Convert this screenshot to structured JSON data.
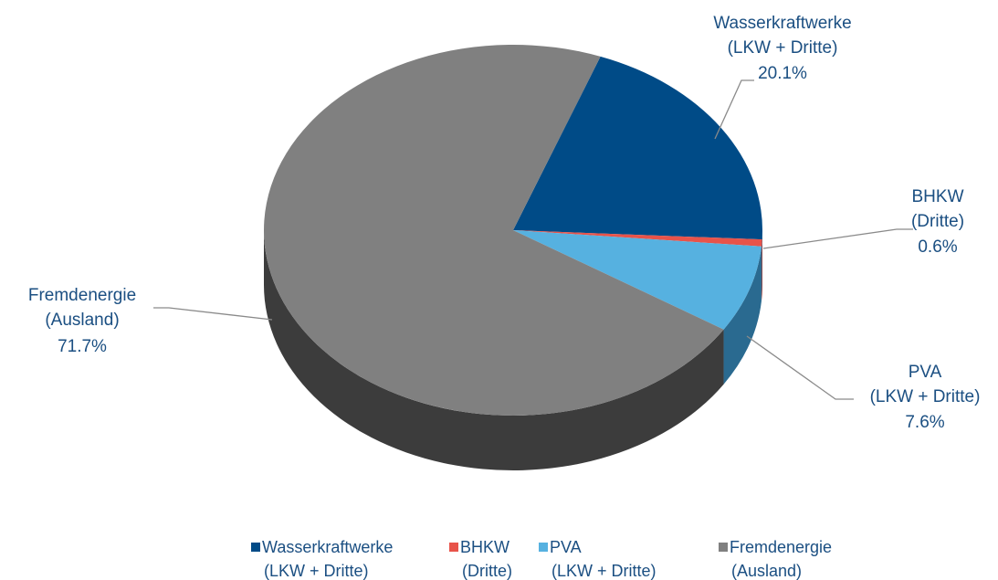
{
  "chart_data": {
    "type": "pie",
    "categories": [
      [
        "Wasserkraftwerke",
        "(LKW + Dritte)"
      ],
      [
        "BHKW",
        "(Dritte)"
      ],
      [
        "PVA",
        "(LKW + Dritte)"
      ],
      [
        "Fremdenergie",
        "(Ausland)"
      ]
    ],
    "values": [
      20.1,
      0.6,
      7.6,
      71.7
    ],
    "value_labels": [
      "20.1%",
      "0.6%",
      "7.6%",
      "71.7%"
    ],
    "colors": [
      "#004b87",
      "#e8534a",
      "#56b1e0",
      "#808080"
    ],
    "legend": "bottom"
  }
}
